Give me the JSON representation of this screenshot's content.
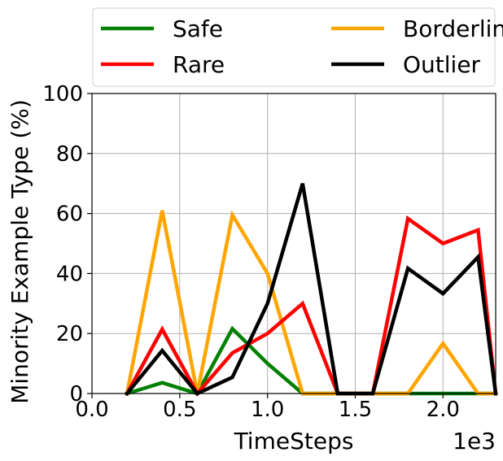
{
  "chart_data": {
    "type": "line",
    "xlabel": "TimeSteps",
    "ylabel": "Minority Example Type (%)",
    "x_offset_label": "1e3",
    "xlim": [
      0,
      2300
    ],
    "ylim": [
      0,
      100
    ],
    "x_scale_factor": 1000,
    "xticks": [
      0,
      500,
      1000,
      1500,
      2000
    ],
    "xtick_labels": [
      "0.0",
      "0.5",
      "1.0",
      "1.5",
      "2.0"
    ],
    "yticks": [
      0,
      20,
      40,
      60,
      80,
      100
    ],
    "ytick_labels": [
      "0",
      "20",
      "40",
      "60",
      "80",
      "100"
    ],
    "grid": true,
    "legend_position": "top, outside plot, 2 columns",
    "x": [
      200,
      400,
      600,
      800,
      1000,
      1200,
      1400,
      1600,
      1800,
      2000,
      2200,
      2300
    ],
    "series": [
      {
        "name": "Safe",
        "color": "#008000",
        "values": [
          0,
          3.6,
          0,
          21.6,
          10,
          0,
          0,
          0,
          0,
          0,
          0,
          0
        ]
      },
      {
        "name": "Borderline",
        "color": "#FFA500",
        "values": [
          0,
          61,
          0,
          59.5,
          40,
          0,
          0,
          0,
          0,
          16.7,
          0,
          0
        ]
      },
      {
        "name": "Rare",
        "color": "#FF0000",
        "values": [
          0,
          21.4,
          0,
          13.5,
          20,
          30,
          0,
          0,
          58.3,
          50,
          54.5,
          0
        ]
      },
      {
        "name": "Outlier",
        "color": "#000000",
        "values": [
          0,
          14.3,
          0,
          5.4,
          30,
          70,
          0,
          0,
          41.7,
          33.3,
          45.5,
          0
        ]
      }
    ]
  }
}
